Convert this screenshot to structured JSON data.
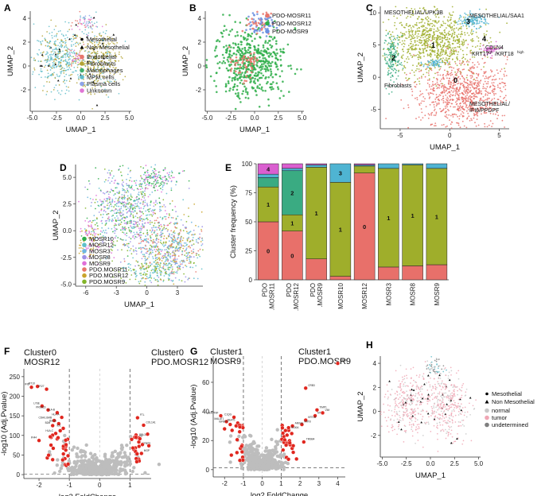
{
  "colors": {
    "endothelial": "#e8756b",
    "fibroblasts": "#b3a334",
    "macrophages": "#3fae6a",
    "mpm": "#5fbcc9",
    "plasma": "#8ea4e8",
    "unknown": "#e076d4",
    "mosr11": "#e8756b",
    "mosr12": "#2fae4a",
    "mosr9": "#6b8fe0",
    "c0": "#e8706a",
    "c1": "#9fae2b",
    "c2": "#3aab82",
    "c3": "#4fb4d2",
    "c4": "#da5fd0",
    "sig": "#e0261e",
    "ns": "#bdbdbd",
    "greenTitle": "#31a02c",
    "redTitle": "#e0261e",
    "normal": "#c8c8c8",
    "tumor": "#f0a6b4",
    "undetermined": "#7f7f7f"
  },
  "chart_data": [
    {
      "panel": "A",
      "type": "scatter",
      "xlabel": "UMAP_1",
      "ylabel": "UMAP_2",
      "xticks": [
        "-5.0",
        "-2.5",
        "0.0",
        "2.5",
        "5.0"
      ],
      "yticks": [
        "4",
        "2",
        "0",
        "-2"
      ],
      "xlim": [
        -5.2,
        5.2
      ],
      "ylim": [
        -3.8,
        4.6
      ],
      "shape_legend": [
        "Mesothelial",
        "Non Mesothelial"
      ],
      "legend": [
        "Endothelial",
        "Fibroblasts",
        "Macrophages",
        "MPM cells",
        "Plasma cells",
        "Unknown"
      ]
    },
    {
      "panel": "B",
      "type": "scatter",
      "xlabel": "UMAP_1",
      "ylabel": "UMAP_2",
      "xticks": [
        "-5.0",
        "-2.5",
        "0.0",
        "2.5",
        "5.0"
      ],
      "yticks": [
        "4",
        "2",
        "0",
        "-2"
      ],
      "xlim": [
        -5.2,
        5.2
      ],
      "ylim": [
        -3.8,
        4.6
      ],
      "legend": [
        "PDO-MOSR11",
        "PDO-MOSR12",
        "PDO-MOSR9"
      ]
    },
    {
      "panel": "C",
      "type": "scatter",
      "xlabel": "UMAP_1",
      "ylabel": "UMAP_2",
      "xticks": [
        "-5",
        "0",
        "5"
      ],
      "yticks": [
        "10",
        "5",
        "0",
        "-5"
      ],
      "xlim": [
        -7,
        6
      ],
      "ylim": [
        -8,
        11
      ],
      "cluster_numbers": [
        "0",
        "1",
        "2",
        "3",
        "4"
      ],
      "annotations": {
        "c1": "MESOTHELIAL/UPK3B",
        "c3": "MESOTHELIAL/SAA1",
        "c4a": "CDLN4",
        "c4b": "KRT17",
        "c4c": "/KRT18",
        "c4sup": "high",
        "c2": "Fibroblasts",
        "c0a": "MESOTHELIAL/",
        "c0b": "IFI6/PPDPF"
      }
    },
    {
      "panel": "D",
      "type": "scatter",
      "xlabel": "UMAP_1",
      "ylabel": "UMAP_2",
      "xticks": [
        "-6",
        "-3",
        "0",
        "3"
      ],
      "yticks": [
        "5.0",
        "2.5",
        "0.0",
        "-2.5",
        "-5.0"
      ],
      "xlim": [
        -7,
        5.5
      ],
      "ylim": [
        -5.2,
        6.2
      ],
      "legend": [
        "MOSR10",
        "MOSR12",
        "MOSR3",
        "MOSR8",
        "MOSR9",
        "PDO.MOSR11",
        "PDO.MOSR12",
        "PDO.MOSR9"
      ],
      "legend_colors": [
        "#2fae4a",
        "#5ec0c9",
        "#6fb6e0",
        "#9e8fe6",
        "#e06fd8",
        "#e8756b",
        "#c9a42b",
        "#83b52a"
      ]
    },
    {
      "panel": "E",
      "type": "bar",
      "stacked": true,
      "ylabel": "Cluster frequency (%)",
      "categories": [
        "PDO.MOSR11",
        "PDO.MOSR12",
        "PDO.MOSR9",
        "MOSR10",
        "MOSR12",
        "MOSR3",
        "MOSR8",
        "MOSR9"
      ],
      "x_tick_labels": [
        [
          "PDO",
          ".MOSR11"
        ],
        [
          "PDO",
          ".MOSR12"
        ],
        [
          "PDO",
          ".MOSR9"
        ],
        [
          "MOSR10"
        ],
        [
          "MOSR12"
        ],
        [
          "MOSR3"
        ],
        [
          "MOSR8"
        ],
        [
          "MOSR9"
        ]
      ],
      "yticks": [
        "100",
        "75",
        "50",
        "25",
        "0"
      ],
      "ylim": [
        0,
        100
      ],
      "series": [
        {
          "name": "0",
          "values": [
            50,
            42,
            18,
            3,
            92,
            11,
            12,
            13
          ]
        },
        {
          "name": "1",
          "values": [
            30,
            14,
            79,
            81,
            6,
            85,
            87,
            83
          ]
        },
        {
          "name": "2",
          "values": [
            8,
            38,
            0,
            0,
            0,
            0,
            0,
            0
          ]
        },
        {
          "name": "3",
          "values": [
            3,
            2,
            2,
            16,
            1,
            4,
            1,
            4
          ]
        },
        {
          "name": "4",
          "values": [
            9,
            4,
            1,
            0,
            1,
            0,
            0,
            0
          ]
        }
      ],
      "segment_labels": [
        {
          "bar": 0,
          "label": "4"
        },
        {
          "bar": 0,
          "label": "1"
        },
        {
          "bar": 0,
          "label": "0"
        },
        {
          "bar": 1,
          "label": "2"
        },
        {
          "bar": 1,
          "label": "1"
        },
        {
          "bar": 1,
          "label": "0"
        },
        {
          "bar": 2,
          "label": "1"
        },
        {
          "bar": 3,
          "label": "3"
        },
        {
          "bar": 3,
          "label": "1"
        },
        {
          "bar": 4,
          "label": "0"
        },
        {
          "bar": 5,
          "label": "1"
        },
        {
          "bar": 6,
          "label": "1"
        },
        {
          "bar": 7,
          "label": "1"
        }
      ]
    },
    {
      "panel": "F",
      "type": "scatter",
      "subtype": "volcano",
      "xlabel": "log2 FoldChange",
      "ylabel": "-log10 (Adj.Pvalue)",
      "xticks": [
        "-2",
        "-1",
        "0",
        "1"
      ],
      "yticks": [
        "250",
        "200",
        "150",
        "100",
        "50",
        "0"
      ],
      "xlim": [
        -2.5,
        1.7
      ],
      "ylim": [
        -10,
        270
      ],
      "title_left": [
        "Cluster0",
        "MOSR12"
      ],
      "title_right": [
        "Cluster0",
        "PDO.MOSR12"
      ],
      "thresholds": {
        "x": [
          -1,
          1
        ],
        "y": 1.3
      },
      "sig_points": [
        [
          -2.25,
          223,
          "IFI6"
        ],
        [
          -2.05,
          225,
          "MT1X"
        ],
        [
          -1.75,
          218,
          "IFI27"
        ],
        [
          -1.9,
          175,
          "LY6E"
        ],
        [
          -1.7,
          165,
          "PRSS23"
        ],
        [
          -1.4,
          158,
          "HLA-B"
        ],
        [
          -1.25,
          146,
          "HLA-A"
        ],
        [
          -1.5,
          138,
          "CDA/LGMB"
        ],
        [
          -1.35,
          130,
          "ISG15"
        ],
        [
          -1.55,
          125,
          "B2M"
        ],
        [
          -1.2,
          118,
          "ID1"
        ],
        [
          -1.45,
          105,
          "HLA-C"
        ],
        [
          -2.0,
          87,
          "IFI44"
        ],
        [
          -1.6,
          95,
          ""
        ],
        [
          -1.3,
          112,
          ""
        ],
        [
          1.25,
          145,
          "FTL"
        ],
        [
          1.45,
          126,
          "COL1A1"
        ],
        [
          1.22,
          94,
          "COL3A1"
        ],
        [
          1.3,
          72,
          "IGFBP5"
        ],
        [
          1.38,
          54,
          "MGP"
        ],
        [
          1.2,
          101,
          ""
        ],
        [
          1.18,
          68,
          ""
        ]
      ]
    },
    {
      "panel": "G",
      "type": "scatter",
      "subtype": "volcano",
      "xlabel": "log2 FoldChange",
      "ylabel": "-log10 (Adj.Pvalue)",
      "xticks": [
        "-2",
        "-1",
        "0",
        "1",
        "2",
        "3",
        "4"
      ],
      "yticks": [
        "60",
        "40",
        "20",
        "0"
      ],
      "xlim": [
        -2.6,
        4.4
      ],
      "ylim": [
        -5,
        78
      ],
      "title_left": [
        "Cluster1",
        "MOSR9"
      ],
      "title_right": [
        "Cluster1",
        "PDO.MOSR9"
      ],
      "thresholds": {
        "x": [
          -1,
          1
        ],
        "y": 1.3
      },
      "sig_points": [
        [
          4.0,
          73,
          "ENO2"
        ],
        [
          2.3,
          56,
          "CRB3"
        ],
        [
          2.9,
          41,
          "TIMP1"
        ],
        [
          2.8,
          37,
          "MT2A"
        ],
        [
          2.3,
          34,
          "KRT18"
        ],
        [
          2.1,
          31,
          "KRT8"
        ],
        [
          2.2,
          19,
          "TMSB4"
        ],
        [
          3.2,
          39,
          "VIM"
        ],
        [
          -2.2,
          37,
          "SERPINF"
        ],
        [
          -1.5,
          36,
          "C1QG"
        ],
        [
          -1.9,
          33,
          "MALAT1"
        ],
        [
          -1.3,
          32,
          "NEAT1"
        ],
        [
          -1.7,
          31,
          "IGFBP7"
        ],
        [
          -2.0,
          28,
          ""
        ],
        [
          -1.6,
          27,
          ""
        ],
        [
          -1.2,
          26,
          ""
        ],
        [
          1.6,
          30,
          "ANXA1"
        ],
        [
          1.4,
          27,
          "S100A"
        ]
      ]
    },
    {
      "panel": "H",
      "type": "scatter",
      "xlabel": "UMAP_1",
      "ylabel": "UMAP_2",
      "xticks": [
        "-5.0",
        "-2.5",
        "0.0",
        "2.5",
        "5.0"
      ],
      "yticks": [
        "4",
        "2",
        "0",
        "-2"
      ],
      "xlim": [
        -5.2,
        5.2
      ],
      "ylim": [
        -3.8,
        4.6
      ],
      "shape_legend": [
        "Mesothelial",
        "Non Mesothelial"
      ],
      "legend": [
        "normal",
        "tumor",
        "undetermined"
      ]
    }
  ]
}
